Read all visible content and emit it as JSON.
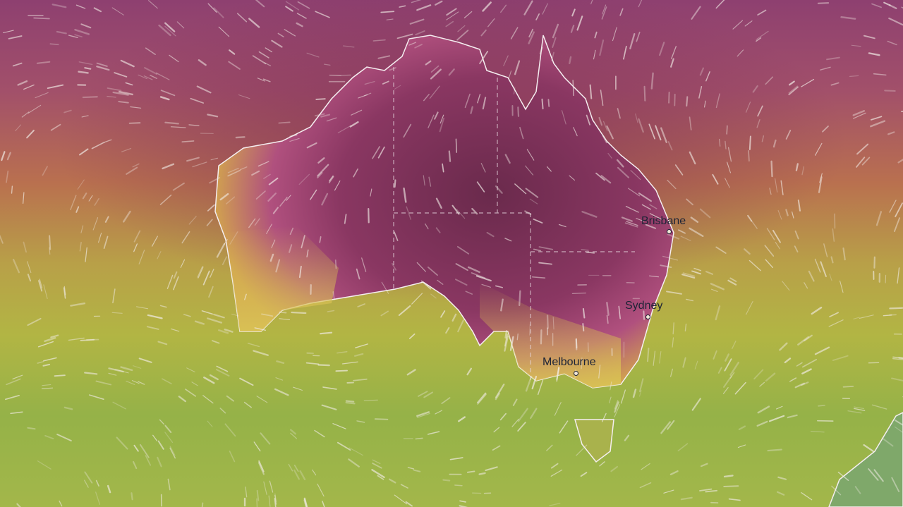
{
  "map": {
    "layer": "temperature and wind",
    "colors": {
      "hot": "#6d2a4e",
      "warm": "#a84f72",
      "mild": "#c07a4a",
      "cool": "#b6b546",
      "cold": "#8fb04b",
      "coast": "#f5eef0"
    },
    "cities": [
      {
        "name": "Brisbane"
      },
      {
        "name": "Sydney"
      },
      {
        "name": "Melbourne"
      }
    ]
  }
}
